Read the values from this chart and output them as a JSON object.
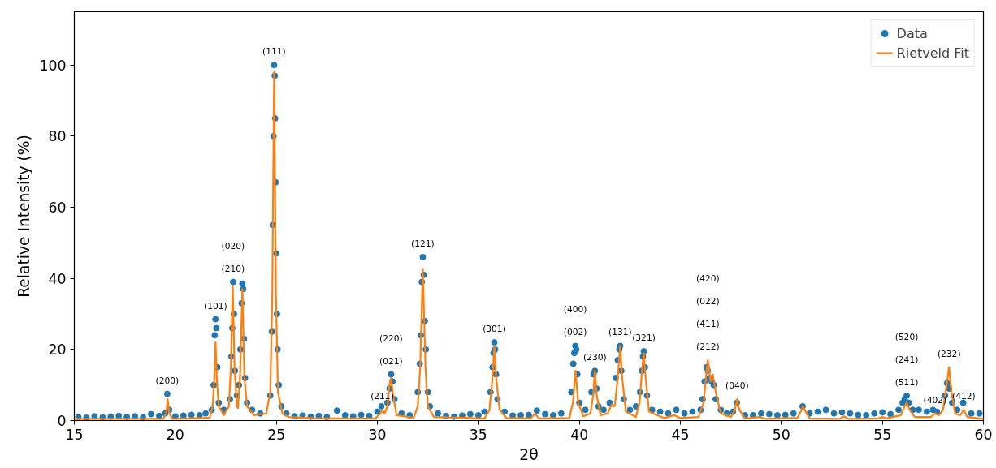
{
  "chart_data": {
    "type": "scatter",
    "xlabel": "2θ",
    "ylabel": "Relative Intensity (%)",
    "xlim": [
      15,
      60
    ],
    "ylim": [
      0,
      115
    ],
    "xticks": [
      15,
      20,
      25,
      30,
      35,
      40,
      45,
      50,
      55,
      60
    ],
    "yticks": [
      0,
      20,
      40,
      60,
      80,
      100
    ],
    "grid": false,
    "legend": "top right",
    "series": [
      {
        "name": "Data",
        "marker": "circle",
        "color": "#1f77b4",
        "x": [
          15.2,
          15.6,
          16.0,
          16.4,
          16.8,
          17.2,
          17.6,
          18.0,
          18.4,
          18.8,
          19.2,
          19.5,
          19.6,
          19.7,
          20.0,
          20.4,
          20.8,
          21.2,
          21.5,
          21.8,
          21.9,
          21.95,
          21.99,
          22.03,
          22.08,
          22.15,
          22.4,
          22.7,
          22.78,
          22.82,
          22.86,
          22.9,
          22.95,
          23.05,
          23.15,
          23.22,
          23.28,
          23.32,
          23.36,
          23.4,
          23.45,
          23.55,
          23.8,
          24.2,
          24.7,
          24.78,
          24.82,
          24.86,
          24.89,
          24.92,
          24.94,
          24.97,
          25.0,
          25.03,
          25.06,
          25.12,
          25.25,
          25.5,
          25.9,
          26.3,
          26.7,
          27.1,
          27.5,
          28.0,
          28.4,
          28.8,
          29.2,
          29.6,
          30.0,
          30.2,
          30.5,
          30.6,
          30.68,
          30.75,
          30.85,
          31.2,
          31.6,
          32.0,
          32.1,
          32.15,
          32.2,
          32.25,
          32.3,
          32.35,
          32.4,
          32.5,
          32.6,
          33.0,
          33.4,
          33.8,
          34.2,
          34.6,
          35.0,
          35.3,
          35.6,
          35.7,
          35.75,
          35.79,
          35.83,
          35.88,
          35.95,
          36.3,
          36.7,
          37.1,
          37.5,
          37.9,
          38.3,
          38.7,
          39.1,
          39.6,
          39.7,
          39.75,
          39.8,
          39.85,
          39.9,
          40.0,
          40.3,
          40.6,
          40.7,
          40.77,
          40.85,
          40.95,
          41.2,
          41.5,
          41.8,
          41.9,
          41.98,
          42.02,
          42.08,
          42.2,
          42.5,
          42.8,
          43.0,
          43.1,
          43.15,
          43.19,
          43.25,
          43.35,
          43.6,
          44.0,
          44.4,
          44.8,
          45.2,
          45.6,
          46.0,
          46.1,
          46.2,
          46.3,
          46.36,
          46.45,
          46.55,
          46.65,
          46.75,
          47.0,
          47.3,
          47.6,
          47.8,
          48.2,
          48.6,
          49.0,
          49.4,
          49.8,
          50.2,
          50.6,
          51.05,
          51.4,
          51.8,
          52.2,
          52.6,
          53.0,
          53.4,
          53.8,
          54.2,
          54.6,
          55.0,
          55.4,
          55.8,
          56.0,
          56.1,
          56.2,
          56.3,
          56.5,
          56.8,
          57.2,
          57.5,
          57.7,
          58.1,
          58.2,
          58.3,
          58.45,
          58.7,
          59.0,
          59.4,
          59.8
        ],
        "values": [
          1,
          0.8,
          1.2,
          0.9,
          1.1,
          1.3,
          1.0,
          1.2,
          0.9,
          1.8,
          1.3,
          2,
          7.5,
          3,
          1.2,
          1.4,
          1.6,
          1.5,
          2,
          3,
          10,
          24,
          28.5,
          26,
          15,
          5,
          3,
          6,
          18,
          26,
          39,
          30,
          14,
          7,
          10,
          20,
          33,
          38.5,
          37,
          23,
          12,
          5,
          3,
          2,
          7,
          25,
          55,
          80,
          100,
          97,
          85,
          67,
          47,
          30,
          20,
          10,
          4,
          2,
          1.2,
          1.4,
          1.1,
          1.3,
          1.0,
          2.8,
          1.5,
          1.2,
          1.6,
          1.3,
          2.5,
          4,
          5,
          9,
          13,
          11,
          6,
          2,
          1.5,
          8,
          16,
          24,
          39,
          46,
          41,
          28,
          20,
          8,
          4,
          2,
          1.3,
          1.1,
          1.4,
          1.8,
          1.5,
          2.5,
          8,
          15,
          19,
          22,
          20,
          13,
          6,
          2.5,
          1.4,
          1.5,
          1.6,
          2.8,
          1.8,
          1.5,
          2,
          8,
          16,
          19,
          21,
          20,
          13,
          5,
          3,
          8,
          13,
          14,
          9,
          4,
          3,
          5,
          12,
          17,
          20,
          21,
          14,
          6,
          3,
          4,
          8,
          14,
          18,
          19.5,
          15,
          7,
          3,
          2.5,
          2,
          3,
          2,
          2.5,
          3,
          6,
          11,
          15,
          14,
          12,
          11,
          10,
          6,
          3,
          2,
          2.5,
          5,
          1.5,
          1.5,
          2,
          1.8,
          1.5,
          1.6,
          2,
          4,
          2,
          2.5,
          3,
          2,
          2.3,
          2,
          1.6,
          1.5,
          2,
          2.3,
          1.8,
          3,
          5,
          6,
          7,
          5,
          3,
          3,
          2.5,
          3,
          2.5,
          7,
          10.5,
          9,
          5,
          3,
          5,
          2,
          2
        ]
      },
      {
        "name": "Rietveld Fit",
        "type": "line",
        "line_style": "solid",
        "color": "#ff7f0e",
        "x": [
          15,
          19.4,
          19.55,
          19.62,
          19.7,
          19.85,
          21.7,
          21.85,
          21.93,
          21.99,
          22.05,
          22.15,
          22.4,
          22.65,
          22.75,
          22.84,
          22.93,
          23.05,
          23.1,
          23.2,
          23.32,
          23.42,
          23.55,
          23.9,
          24.5,
          24.7,
          24.8,
          24.89,
          24.98,
          25.08,
          25.3,
          25.6,
          27,
          29.9,
          30.15,
          30.24,
          30.35,
          30.5,
          30.6,
          30.68,
          30.78,
          30.95,
          31.8,
          32.0,
          32.12,
          32.25,
          32.38,
          32.5,
          32.8,
          35.3,
          35.55,
          35.7,
          35.79,
          35.88,
          36.05,
          36.4,
          37.6,
          37.8,
          38.0,
          39.5,
          39.68,
          39.81,
          39.94,
          40.2,
          40.55,
          40.68,
          40.77,
          40.86,
          41.05,
          41.4,
          41.6,
          41.75,
          41.9,
          42.02,
          42.12,
          42.3,
          42.8,
          42.98,
          43.1,
          43.19,
          43.28,
          43.45,
          44.2,
          44.7,
          45.0,
          45.9,
          46.15,
          46.3,
          46.36,
          46.5,
          46.6,
          46.75,
          47.0,
          47.5,
          47.7,
          47.81,
          47.92,
          48.2,
          48.9,
          49.2,
          50.8,
          51.0,
          51.07,
          51.15,
          51.4,
          52.9,
          53.1,
          53.3,
          54.8,
          55.0,
          55.2,
          55.9,
          56.1,
          56.2,
          56.35,
          56.6,
          57.4,
          57.6,
          57.8,
          58.0,
          58.15,
          58.3,
          58.42,
          58.6,
          58.85,
          59.03,
          59.2,
          60
        ],
        "values": [
          0.5,
          0.5,
          2,
          6,
          2,
          0.5,
          0.8,
          4,
          12,
          22,
          12,
          4,
          1.5,
          4,
          15,
          38,
          15,
          4,
          3.5,
          12,
          37,
          12,
          4,
          1.5,
          2,
          8,
          35,
          98,
          35,
          8,
          2,
          1,
          0.6,
          0.6,
          2,
          3,
          2,
          4,
          10,
          12,
          7,
          1.5,
          0.8,
          4,
          15,
          42.5,
          15,
          4,
          1,
          0.6,
          3,
          12,
          21,
          12,
          3,
          0.7,
          0.6,
          2,
          0.6,
          0.7,
          5,
          14,
          5,
          1.2,
          2,
          7,
          14,
          7,
          1.5,
          2,
          4.5,
          4,
          12,
          21,
          12,
          2.5,
          1,
          5,
          14,
          19,
          12,
          2.5,
          0.7,
          1.5,
          0.7,
          1,
          5,
          14,
          17,
          11,
          13,
          8,
          2,
          1,
          3,
          6,
          3,
          0.6,
          1,
          0.5,
          0.8,
          3,
          4,
          3,
          0.6,
          0.5,
          1.2,
          0.5,
          0.6,
          1,
          0.6,
          1.5,
          4,
          5,
          3,
          1,
          1,
          2,
          1.5,
          3,
          9,
          15,
          8,
          2,
          1.5,
          3,
          1,
          0.5
        ]
      }
    ],
    "annotations": [
      {
        "text": "(200)",
        "x": 19.6,
        "y": 7.5
      },
      {
        "text": "(101)",
        "x": 21.99,
        "y": 28.5
      },
      {
        "text": "(210)",
        "x": 22.86,
        "y": 39
      },
      "(020)",
      {
        "text": "(111)",
        "x": 24.89,
        "y": 100
      },
      {
        "text": "(211)",
        "x": 30.24,
        "y": 3
      },
      {
        "text": "(021)",
        "x": 30.68,
        "y": 13
      },
      "(220)",
      {
        "text": "(121)",
        "x": 32.25,
        "y": 46
      },
      {
        "text": "(301)",
        "x": 35.79,
        "y": 22
      },
      {
        "text": "(002)",
        "x": 39.8,
        "y": 21
      },
      "(400)",
      {
        "text": "(230)",
        "x": 40.77,
        "y": 14
      },
      {
        "text": "(131)",
        "x": 42.02,
        "y": 21
      },
      {
        "text": "(321)",
        "x": 43.19,
        "y": 19.5
      },
      {
        "text": "(212)",
        "x": 46.36,
        "y": 17
      },
      "(411)",
      "(022)",
      "(420)",
      {
        "text": "(040)",
        "x": 47.81,
        "y": 6
      },
      {
        "text": "(511)",
        "x": 56.2,
        "y": 7
      },
      "(241)",
      "(520)",
      {
        "text": "(402)",
        "x": 57.6,
        "y": 2
      },
      {
        "text": "(232)",
        "x": 58.3,
        "y": 15
      },
      {
        "text": "(412)",
        "x": 59.03,
        "y": 3
      }
    ]
  }
}
